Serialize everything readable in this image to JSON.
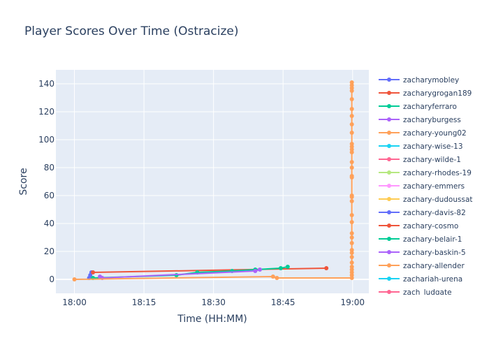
{
  "chart_data": {
    "type": "line",
    "title": "Player Scores Over Time (Ostracize)",
    "xlabel": "Time (HH:MM)",
    "ylabel": "Score",
    "x_domain_minutes": [
      -4,
      63.5
    ],
    "ylim": [
      -10,
      150
    ],
    "x_ticks": [
      {
        "label": "18:00",
        "minutes": 0
      },
      {
        "label": "18:15",
        "minutes": 15
      },
      {
        "label": "18:30",
        "minutes": 30
      },
      {
        "label": "18:45",
        "minutes": 45
      },
      {
        "label": "19:00",
        "minutes": 60
      }
    ],
    "y_ticks": [
      0,
      20,
      40,
      60,
      80,
      100,
      120,
      140
    ],
    "grid": true,
    "plot_background": "#e5ecf6",
    "legend_position": "right",
    "series": [
      {
        "name": "zacharymobley",
        "color": "#636efa",
        "x": [
          "18:03:10",
          "18:03:25",
          "18:03:40"
        ],
        "y": [
          1,
          3,
          5
        ]
      },
      {
        "name": "zacharygrogan189",
        "color": "#ef553b",
        "x": [
          "18:04:00",
          "18:54:20"
        ],
        "y": [
          5,
          8
        ]
      },
      {
        "name": "zacharyferraro",
        "color": "#00cc96",
        "x": [
          "18:04:00",
          "18:22:00",
          "18:26:30",
          "18:34:00",
          "18:39:00",
          "18:44:30",
          "18:46:00"
        ],
        "y": [
          1,
          3,
          5,
          6,
          7,
          8,
          9
        ]
      },
      {
        "name": "zacharyburgess",
        "color": "#ab63fa",
        "x": [
          "18:05:30",
          "18:06:00",
          "18:39:00",
          "18:40:00"
        ],
        "y": [
          2,
          1,
          6,
          7
        ]
      },
      {
        "name": "zachary-young02",
        "color": "#ffa15a",
        "x": [
          "18:00:00",
          "18:42:50",
          "18:43:40",
          "18:59:50",
          "18:59:50",
          "18:59:50",
          "18:59:50",
          "18:59:50",
          "18:59:50",
          "18:59:50",
          "18:59:50",
          "18:59:50",
          "18:59:50",
          "18:59:50",
          "18:59:50",
          "18:59:50",
          "18:59:50",
          "18:59:50",
          "18:59:50",
          "18:59:50",
          "18:59:50",
          "18:59:50",
          "18:59:50",
          "18:59:50",
          "18:59:50",
          "18:59:50",
          "18:59:50",
          "18:59:50",
          "18:59:50",
          "18:59:50",
          "18:59:50",
          "18:59:50",
          "18:59:50",
          "18:59:50",
          "18:59:50",
          "18:59:50",
          "18:59:50"
        ],
        "y": [
          0,
          2,
          1,
          1,
          3,
          5,
          7,
          9,
          12,
          16,
          19,
          21,
          26,
          30,
          33,
          41,
          46,
          56,
          59,
          60,
          73,
          74,
          80,
          84,
          91,
          93,
          95,
          97,
          105,
          111,
          117,
          122,
          129,
          135,
          137,
          139,
          141
        ]
      }
    ]
  },
  "legend": {
    "entries": [
      {
        "name": "zacharymobley",
        "color": "#636efa"
      },
      {
        "name": "zacharygrogan189",
        "color": "#ef553b"
      },
      {
        "name": "zacharyferraro",
        "color": "#00cc96"
      },
      {
        "name": "zacharyburgess",
        "color": "#ab63fa"
      },
      {
        "name": "zachary-young02",
        "color": "#ffa15a"
      },
      {
        "name": "zachary-wise-13",
        "color": "#19d3f3"
      },
      {
        "name": "zachary-wilde-1",
        "color": "#ff6692"
      },
      {
        "name": "zachary-rhodes-19",
        "color": "#b6e880"
      },
      {
        "name": "zachary-emmers",
        "color": "#ff97ff"
      },
      {
        "name": "zachary-dudoussat",
        "color": "#fecb52"
      },
      {
        "name": "zachary-davis-82",
        "color": "#636efa"
      },
      {
        "name": "zachary-cosmo",
        "color": "#ef553b"
      },
      {
        "name": "zachary-belair-1",
        "color": "#00cc96"
      },
      {
        "name": "zachary-baskin-5",
        "color": "#ab63fa"
      },
      {
        "name": "zachary-allender",
        "color": "#ffa15a"
      },
      {
        "name": "zachariah-urena",
        "color": "#19d3f3"
      },
      {
        "name": "zach_ludgate",
        "color": "#ff6692"
      }
    ]
  }
}
